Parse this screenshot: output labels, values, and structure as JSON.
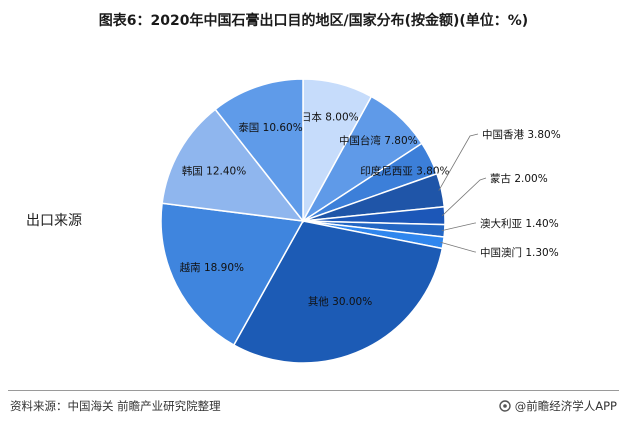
{
  "title": "图表6：2020年中国石膏出口目的地区/国家分布(按金额)(单位：%)",
  "series_label": "出口来源",
  "source": "资料来源：中国海关 前瞻产业研究院整理",
  "brand": "@前瞻经济学人APP",
  "chart_data": {
    "type": "pie",
    "title": "图表6：2020年中国石膏出口目的地区/国家分布(按金额)(单位：%)",
    "series_name": "出口来源",
    "unit": "%",
    "start": "12 o'clock",
    "direction": "clockwise",
    "slices": [
      {
        "label": "日本",
        "value": 8.0,
        "display": "8.00%",
        "color": "#c6dcfb"
      },
      {
        "label": "中国台湾",
        "value": 7.8,
        "display": "7.80%",
        "color": "#5f9ae8"
      },
      {
        "label": "印度尼西亚",
        "value": 3.8,
        "display": "3.80%",
        "color": "#3c7fd9"
      },
      {
        "label": "中国香港",
        "value": 3.8,
        "display": "3.80%",
        "color": "#1f55a8"
      },
      {
        "label": "蒙古",
        "value": 2.0,
        "display": "2.00%",
        "color": "#1c57b8"
      },
      {
        "label": "澳大利亚",
        "value": 1.4,
        "display": "1.40%",
        "color": "#2366c4"
      },
      {
        "label": "中国澳门",
        "value": 1.3,
        "display": "1.30%",
        "color": "#2f86ee"
      },
      {
        "label": "其他",
        "value": 30.0,
        "display": "30.00%",
        "color": "#1c5bb5"
      },
      {
        "label": "越南",
        "value": 18.9,
        "display": "18.90%",
        "color": "#3f85de"
      },
      {
        "label": "韩国",
        "value": 12.4,
        "display": "12.40%",
        "color": "#8fb6ee"
      },
      {
        "label": "泰国",
        "value": 10.6,
        "display": "10.60%",
        "color": "#5f9be9"
      }
    ]
  }
}
